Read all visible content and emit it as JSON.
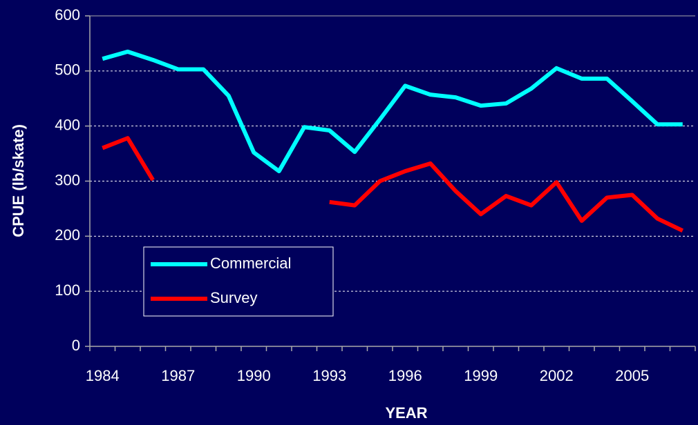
{
  "chart_data": {
    "type": "line",
    "xlabel": "YEAR",
    "ylabel": "CPUE (lb/skate)",
    "categories": [
      "1984",
      null,
      null,
      "1987",
      null,
      null,
      "1990",
      null,
      null,
      "1993",
      null,
      null,
      "1996",
      null,
      null,
      "1999",
      null,
      null,
      "2002",
      null,
      null,
      "2005",
      null,
      null
    ],
    "series": [
      {
        "name": "Commercial",
        "color": "#00ffff",
        "values": [
          522,
          535,
          520,
          503,
          503,
          455,
          352,
          318,
          398,
          392,
          353,
          412,
          473,
          457,
          452,
          437,
          441,
          468,
          505,
          486,
          486,
          445,
          403,
          403
        ]
      },
      {
        "name": "Survey",
        "color": "#ff0000",
        "values": [
          360,
          378,
          302,
          null,
          null,
          null,
          null,
          null,
          null,
          262,
          256,
          300,
          318,
          332,
          282,
          240,
          273,
          256,
          298,
          228,
          270,
          275,
          232,
          210
        ]
      }
    ],
    "ylim": [
      0,
      600
    ],
    "yticks": [
      0,
      100,
      200,
      300,
      400,
      500,
      600
    ],
    "grid": true,
    "legend": "lower left"
  }
}
